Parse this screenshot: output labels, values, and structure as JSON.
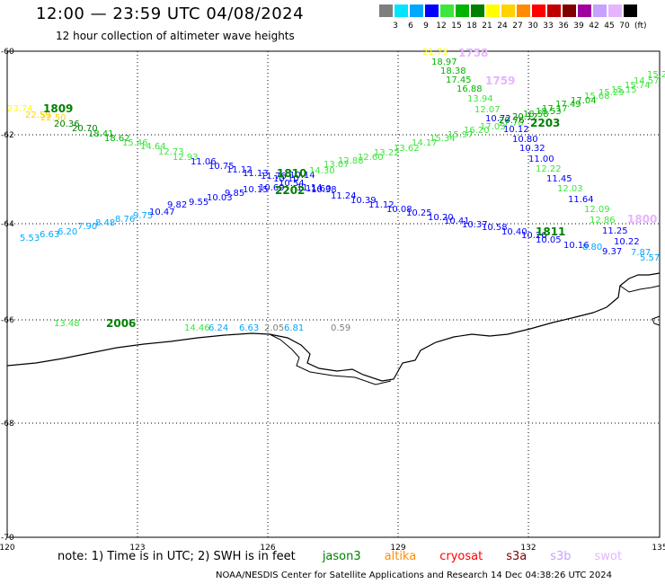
{
  "header": {
    "title": "12:00 — 23:59 UTC 04/08/2024",
    "subtitle": "12 hour collection of altimeter wave heights"
  },
  "legend": {
    "unit": "(ft)",
    "bins": [
      {
        "label": "3",
        "color": "#7f7f7f"
      },
      {
        "label": "6",
        "color": "#00e4ff"
      },
      {
        "label": "9",
        "color": "#00a8ff"
      },
      {
        "label": "12",
        "color": "#0000ff"
      },
      {
        "label": "15",
        "color": "#3ce63c"
      },
      {
        "label": "18",
        "color": "#00b400"
      },
      {
        "label": "21",
        "color": "#008000"
      },
      {
        "label": "24",
        "color": "#ffff00"
      },
      {
        "label": "27",
        "color": "#ffd200"
      },
      {
        "label": "30",
        "color": "#ff8c00"
      },
      {
        "label": "33",
        "color": "#ff0000"
      },
      {
        "label": "36",
        "color": "#c00000"
      },
      {
        "label": "39",
        "color": "#800000"
      },
      {
        "label": "42",
        "color": "#a000a0"
      },
      {
        "label": "45",
        "color": "#c8a0ff"
      },
      {
        "label": "70",
        "color": "#e6b4ff"
      },
      {
        "label": "",
        "color": "#000000"
      }
    ]
  },
  "axes": {
    "y_ticks": [
      "-60",
      "-62",
      "-64",
      "-66",
      "-68",
      "-70"
    ],
    "x_ticks": [
      "120",
      "123",
      "126",
      "129",
      "132",
      "135"
    ]
  },
  "tracks": [
    {
      "time": "1809",
      "labels": [
        {
          "t": "23.74",
          "c": "#ffff00"
        },
        {
          "t": "22.59",
          "c": "#ffd200"
        },
        {
          "t": "22.50",
          "c": "#ffd200"
        },
        {
          "t": "20.36",
          "c": "#008000"
        },
        {
          "t": "20.70",
          "c": "#008000"
        },
        {
          "t": "18.41",
          "c": "#00b400"
        },
        {
          "t": "18.62",
          "c": "#00b400"
        },
        {
          "t": "15.46",
          "c": "#3ce63c"
        },
        {
          "t": "14.64",
          "c": "#3ce63c"
        },
        {
          "t": "12.73",
          "c": "#3ce63c"
        },
        {
          "t": "12.93",
          "c": "#3ce63c"
        },
        {
          "t": "11.06",
          "c": "#0000ff"
        },
        {
          "t": "10.75",
          "c": "#0000ff"
        },
        {
          "t": "11.12",
          "c": "#0000ff"
        },
        {
          "t": "11.13",
          "c": "#0000ff"
        },
        {
          "t": "11.76",
          "c": "#0000ff"
        },
        {
          "t": "10.10",
          "c": "#0000ff"
        },
        {
          "t": "10.14",
          "c": "#0000ff"
        },
        {
          "t": "10.38",
          "c": "#0000ff"
        },
        {
          "t": "11.24",
          "c": "#0000ff"
        },
        {
          "t": "10.39",
          "c": "#0000ff"
        },
        {
          "t": "11.12",
          "c": "#0000ff"
        },
        {
          "t": "10.08",
          "c": "#0000ff"
        },
        {
          "t": "10.25",
          "c": "#0000ff"
        },
        {
          "t": "10.20",
          "c": "#0000ff"
        },
        {
          "t": "10.41",
          "c": "#0000ff"
        },
        {
          "t": "10.37",
          "c": "#0000ff"
        },
        {
          "t": "10.58",
          "c": "#0000ff"
        },
        {
          "t": "10.40",
          "c": "#0000ff"
        },
        {
          "t": "10.26",
          "c": "#0000ff"
        }
      ]
    },
    {
      "time": "1810",
      "labels": [
        {
          "t": "5.53",
          "c": "#00a8ff"
        },
        {
          "t": "6.63",
          "c": "#00a8ff"
        },
        {
          "t": "6.20",
          "c": "#00a8ff"
        },
        {
          "t": "7.90",
          "c": "#00a8ff"
        },
        {
          "t": "8.48",
          "c": "#00a8ff"
        },
        {
          "t": "8.76",
          "c": "#00a8ff"
        },
        {
          "t": "9.75",
          "c": "#00a8ff"
        },
        {
          "t": "10.47",
          "c": "#0000ff"
        },
        {
          "t": "9.82",
          "c": "#0000ff"
        },
        {
          "t": "9.55",
          "c": "#0000ff"
        },
        {
          "t": "10.03",
          "c": "#0000ff"
        },
        {
          "t": "9.85",
          "c": "#0000ff"
        },
        {
          "t": "10.15",
          "c": "#0000ff"
        },
        {
          "t": "10.69",
          "c": "#0000ff"
        },
        {
          "t": "10.54",
          "c": "#0000ff"
        },
        {
          "t": "11.14",
          "c": "#0000ff"
        },
        {
          "t": "11.60",
          "c": "#0000ff"
        },
        {
          "t": "14.30",
          "c": "#3ce63c"
        },
        {
          "t": "13.07",
          "c": "#3ce63c"
        },
        {
          "t": "12.88",
          "c": "#3ce63c"
        },
        {
          "t": "12.60",
          "c": "#3ce63c"
        },
        {
          "t": "13.22",
          "c": "#3ce63c"
        },
        {
          "t": "13.62",
          "c": "#3ce63c"
        },
        {
          "t": "14.17",
          "c": "#3ce63c"
        },
        {
          "t": "15.34",
          "c": "#3ce63c"
        },
        {
          "t": "15.97",
          "c": "#3ce63c"
        },
        {
          "t": "16.20",
          "c": "#3ce63c"
        },
        {
          "t": "17.03",
          "c": "#3ce63c"
        },
        {
          "t": "17.70",
          "c": "#3ce63c"
        }
      ]
    },
    {
      "time": "1758",
      "labels": [
        {
          "t": "21.73",
          "c": "#ffff00"
        },
        {
          "t": "18.97",
          "c": "#00b400"
        },
        {
          "t": "18.38",
          "c": "#00b400"
        },
        {
          "t": "17.45",
          "c": "#00b400"
        },
        {
          "t": "16.88",
          "c": "#00b400"
        },
        {
          "t": "13.94",
          "c": "#3ce63c"
        },
        {
          "t": "12.07",
          "c": "#3ce63c"
        },
        {
          "t": "10.72",
          "c": "#0000ff"
        },
        {
          "t": "10.12",
          "c": "#0000ff"
        },
        {
          "t": "10.80",
          "c": "#0000ff"
        },
        {
          "t": "10.32",
          "c": "#0000ff"
        },
        {
          "t": "11.00",
          "c": "#0000ff"
        },
        {
          "t": "12.22",
          "c": "#3ce63c"
        },
        {
          "t": "11.45",
          "c": "#0000ff"
        },
        {
          "t": "12.03",
          "c": "#3ce63c"
        },
        {
          "t": "11.64",
          "c": "#0000ff"
        },
        {
          "t": "12.09",
          "c": "#3ce63c"
        },
        {
          "t": "12.86",
          "c": "#3ce63c"
        },
        {
          "t": "11.25",
          "c": "#0000ff"
        },
        {
          "t": "10.22",
          "c": "#0000ff"
        },
        {
          "t": "5.57",
          "c": "#00a8ff"
        }
      ]
    },
    {
      "time": "1759",
      "labels": [
        {
          "t": "15.2",
          "c": "#3ce63c"
        },
        {
          "t": "14.57",
          "c": "#3ce63c"
        },
        {
          "t": "15.74",
          "c": "#3ce63c"
        },
        {
          "t": "15.15",
          "c": "#3ce63c"
        },
        {
          "t": "15.29",
          "c": "#3ce63c"
        },
        {
          "t": "15.68",
          "c": "#3ce63c"
        },
        {
          "t": "17.04",
          "c": "#00b400"
        },
        {
          "t": "17.49",
          "c": "#00b400"
        },
        {
          "t": "17.17",
          "c": "#00b400"
        },
        {
          "t": "18.53",
          "c": "#00b400"
        },
        {
          "t": "18.58",
          "c": "#00b400"
        },
        {
          "t": "20.12",
          "c": "#008000"
        },
        {
          "t": "20.76",
          "c": "#008000"
        }
      ]
    },
    {
      "time": "1811",
      "labels": [
        {
          "t": "10.05",
          "c": "#0000ff"
        },
        {
          "t": "10.16",
          "c": "#0000ff"
        },
        {
          "t": "8.80",
          "c": "#00a8ff"
        },
        {
          "t": "9.37",
          "c": "#0000ff"
        },
        {
          "t": "7.87",
          "c": "#00a8ff"
        }
      ]
    },
    {
      "time": "2006",
      "labels": [
        {
          "t": "13.48",
          "c": "#3ce63c"
        },
        {
          "t": "14.46",
          "c": "#3ce63c"
        },
        {
          "t": "6.24",
          "c": "#00a8ff"
        },
        {
          "t": "6.63",
          "c": "#00a8ff"
        },
        {
          "t": "2.05",
          "c": "#7f7f7f"
        },
        {
          "t": "6.81",
          "c": "#00a8ff"
        },
        {
          "t": "0.59",
          "c": "#7f7f7f"
        }
      ]
    }
  ],
  "pass_times": [
    {
      "t": "1809",
      "c": "#008000"
    },
    {
      "t": "1810",
      "c": "#008000"
    },
    {
      "t": "2202",
      "c": "#008000"
    },
    {
      "t": "1758",
      "c": "#e6b4ff"
    },
    {
      "t": "1759",
      "c": "#e6b4ff"
    },
    {
      "t": "2203",
      "c": "#008000"
    },
    {
      "t": "1811",
      "c": "#008000"
    },
    {
      "t": "1800",
      "c": "#e6b4ff"
    },
    {
      "t": "2006",
      "c": "#008000"
    }
  ],
  "note": {
    "prefix": "note: 1) Time is in UTC; 2) SWH is in feet",
    "satellites": [
      {
        "name": "jason3",
        "color": "#008000"
      },
      {
        "name": "altika",
        "color": "#ff8c00"
      },
      {
        "name": "cryosat",
        "color": "#ff0000"
      },
      {
        "name": "s3a",
        "color": "#800000"
      },
      {
        "name": "s3b",
        "color": "#c8a0ff"
      },
      {
        "name": "swot",
        "color": "#e6b4ff"
      }
    ]
  },
  "footer": "NOAA/NESDIS Center for Satellite Applications and Research   14 Dec 04:38:26 UTC 2024"
}
